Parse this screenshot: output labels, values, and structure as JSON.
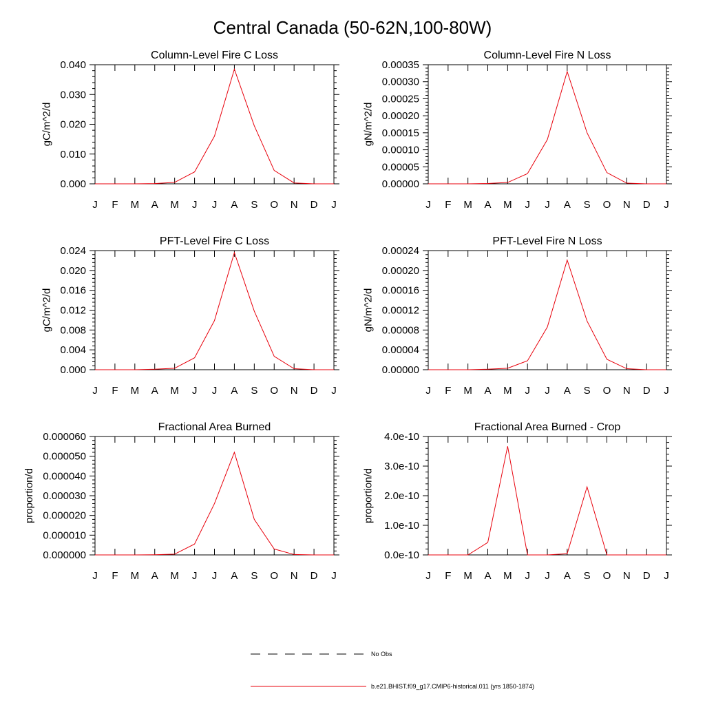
{
  "figure": {
    "title": "Central Canada (50-62N,100-80W)"
  },
  "legend": {
    "entries": [
      {
        "label": "No Obs",
        "style": "dashed",
        "color": "#000000"
      },
      {
        "label": "b.e21.BHIST.f09_g17.CMIP6-historical.011 (yrs 1850-1874)",
        "style": "solid",
        "color": "#e8000b"
      }
    ]
  },
  "colors": {
    "model_line": "#e8000b",
    "axes": "#000000"
  },
  "chart_data": [
    {
      "type": "line",
      "title": "Column-Level Fire C Loss",
      "xlabel": "",
      "ylabel": "gC/m^2/d",
      "categories": [
        "J",
        "F",
        "M",
        "A",
        "M",
        "J",
        "J",
        "A",
        "S",
        "O",
        "N",
        "D",
        "J"
      ],
      "ylim": [
        0,
        0.04
      ],
      "yticks": [
        "0.000",
        "0.010",
        "0.020",
        "0.030",
        "0.040"
      ],
      "ytick_values": [
        0,
        0.01,
        0.02,
        0.03,
        0.04
      ],
      "series": [
        {
          "values": [
            0,
            0,
            0,
            0.0001,
            0.0005,
            0.004,
            0.016,
            0.0385,
            0.0195,
            0.0045,
            0.0003,
            0,
            0
          ]
        }
      ]
    },
    {
      "type": "line",
      "title": "Column-Level Fire N Loss",
      "xlabel": "",
      "ylabel": "gN/m^2/d",
      "categories": [
        "J",
        "F",
        "M",
        "A",
        "M",
        "J",
        "J",
        "A",
        "S",
        "O",
        "N",
        "D",
        "J"
      ],
      "ylim": [
        0,
        0.00035
      ],
      "yticks": [
        "0.00000",
        "0.00005",
        "0.00010",
        "0.00015",
        "0.00020",
        "0.00025",
        "0.00030",
        "0.00035"
      ],
      "ytick_values": [
        0,
        5e-05,
        0.0001,
        0.00015,
        0.0002,
        0.00025,
        0.0003,
        0.00035
      ],
      "series": [
        {
          "values": [
            0,
            0,
            0,
            1e-06,
            4e-06,
            3e-05,
            0.00013,
            0.00033,
            0.00015,
            3.3e-05,
            2e-06,
            0,
            0
          ]
        }
      ]
    },
    {
      "type": "line",
      "title": "PFT-Level Fire C Loss",
      "xlabel": "",
      "ylabel": "gC/m^2/d",
      "categories": [
        "J",
        "F",
        "M",
        "A",
        "M",
        "J",
        "J",
        "A",
        "S",
        "O",
        "N",
        "D",
        "J"
      ],
      "ylim": [
        0,
        0.024
      ],
      "yticks": [
        "0.000",
        "0.004",
        "0.008",
        "0.012",
        "0.016",
        "0.020",
        "0.024"
      ],
      "ytick_values": [
        0,
        0.004,
        0.008,
        0.012,
        0.016,
        0.02,
        0.024
      ],
      "series": [
        {
          "values": [
            0,
            0,
            0,
            0.0001,
            0.0003,
            0.0024,
            0.0099,
            0.0236,
            0.0118,
            0.0027,
            0.0002,
            0,
            0
          ]
        }
      ]
    },
    {
      "type": "line",
      "title": "PFT-Level Fire N Loss",
      "xlabel": "",
      "ylabel": "gN/m^2/d",
      "categories": [
        "J",
        "F",
        "M",
        "A",
        "M",
        "J",
        "J",
        "A",
        "S",
        "O",
        "N",
        "D",
        "J"
      ],
      "ylim": [
        0,
        0.00024
      ],
      "yticks": [
        "0.00000",
        "0.00004",
        "0.00008",
        "0.00012",
        "0.00016",
        "0.00020",
        "0.00024"
      ],
      "ytick_values": [
        0,
        4e-05,
        8e-05,
        0.00012,
        0.00016,
        0.0002,
        0.00024
      ],
      "series": [
        {
          "values": [
            0,
            0,
            0,
            1e-06,
            3e-06,
            1.8e-05,
            8.6e-05,
            0.000221,
            9.8e-05,
            2.1e-05,
            2e-06,
            0,
            0
          ]
        }
      ]
    },
    {
      "type": "line",
      "title": "Fractional Area Burned",
      "xlabel": "",
      "ylabel": "proportion/d",
      "categories": [
        "J",
        "F",
        "M",
        "A",
        "M",
        "J",
        "J",
        "A",
        "S",
        "O",
        "N",
        "D",
        "J"
      ],
      "ylim": [
        0,
        6e-05
      ],
      "yticks": [
        "0.000000",
        "0.000010",
        "0.000020",
        "0.000030",
        "0.000040",
        "0.000050",
        "0.000060"
      ],
      "ytick_values": [
        0,
        1e-05,
        2e-05,
        3e-05,
        4e-05,
        5e-05,
        6e-05
      ],
      "series": [
        {
          "values": [
            0,
            0,
            0,
            1e-07,
            4e-07,
            5.5e-06,
            2.6e-05,
            5.2e-05,
            1.8e-05,
            3e-06,
            2e-07,
            0,
            0
          ]
        }
      ]
    },
    {
      "type": "line",
      "title": "Fractional Area Burned - Crop",
      "xlabel": "",
      "ylabel": "proportion/d",
      "categories": [
        "J",
        "F",
        "M",
        "A",
        "M",
        "J",
        "J",
        "A",
        "S",
        "O",
        "N",
        "D",
        "J"
      ],
      "ylim": [
        0,
        4e-10
      ],
      "yticks": [
        "0.0e-10",
        "1.0e-10",
        "2.0e-10",
        "3.0e-10",
        "4.0e-10"
      ],
      "ytick_values": [
        0,
        1e-10,
        2e-10,
        3e-10,
        4e-10
      ],
      "series": [
        {
          "values": [
            0,
            0,
            0,
            4.2e-11,
            3.67e-10,
            0,
            0,
            4e-12,
            2.3e-10,
            0,
            0,
            0,
            0
          ]
        }
      ]
    }
  ]
}
